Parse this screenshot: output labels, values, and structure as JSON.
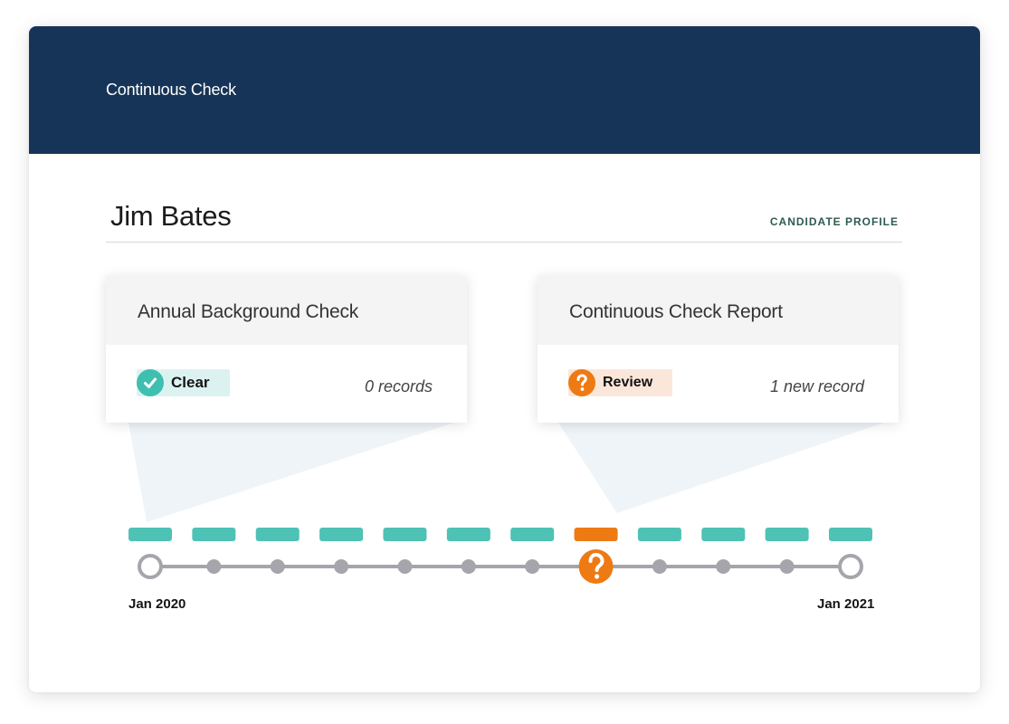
{
  "app": {
    "title": "Continuous Check"
  },
  "candidate": {
    "name": "Jim Bates",
    "profile_link_label": "CANDIDATE PROFILE"
  },
  "cards": [
    {
      "title": "Annual Background Check",
      "status_label": "Clear",
      "status_icon": "check-icon",
      "status_color": "#3fbfb0",
      "records_label": "0 records"
    },
    {
      "title": "Continuous Check Report",
      "status_label": "Review",
      "status_icon": "question-icon",
      "status_color": "#ee7a14",
      "records_label": "1 new record"
    }
  ],
  "timeline": {
    "start_label": "Jan 2020",
    "end_label": "Jan 2021",
    "segment_statuses": [
      "clear",
      "clear",
      "clear",
      "clear",
      "clear",
      "clear",
      "clear",
      "review",
      "clear",
      "clear",
      "clear",
      "clear"
    ],
    "colors": {
      "clear": "#4dc2b5",
      "review": "#ee7a14",
      "line": "#a5a5ab"
    }
  }
}
